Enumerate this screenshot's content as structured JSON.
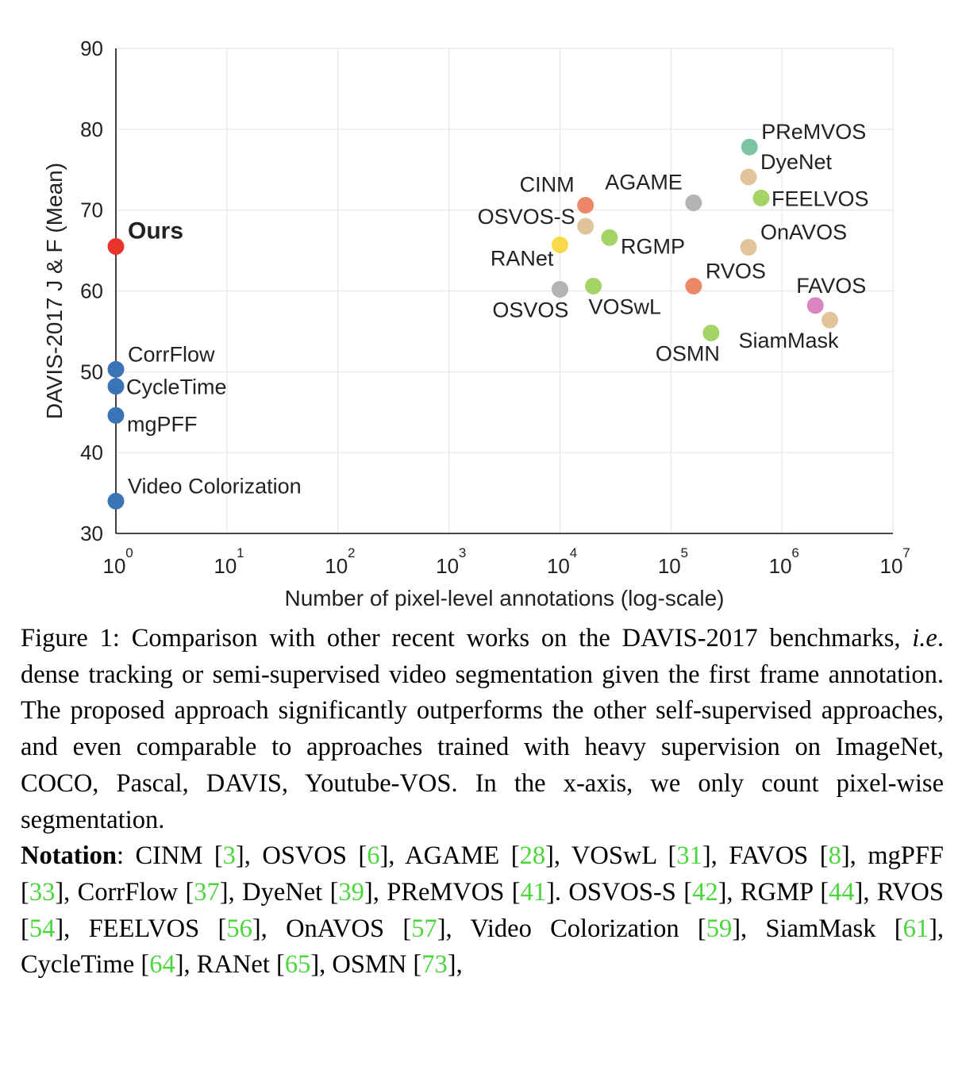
{
  "chart_data": {
    "type": "scatter",
    "xlabel": "Number of pixel-level annotations (log-scale)",
    "ylabel": "DAVIS-2017 J & F (Mean)",
    "xscale": "log",
    "xlim": [
      1,
      10000000
    ],
    "ylim": [
      30,
      90
    ],
    "grid": true,
    "x_ticks": [
      {
        "base": "10",
        "exp": "0"
      },
      {
        "base": "10",
        "exp": "1"
      },
      {
        "base": "10",
        "exp": "2"
      },
      {
        "base": "10",
        "exp": "3"
      },
      {
        "base": "10",
        "exp": "4"
      },
      {
        "base": "10",
        "exp": "5"
      },
      {
        "base": "10",
        "exp": "6"
      },
      {
        "base": "10",
        "exp": "7"
      }
    ],
    "y_ticks": [
      30,
      40,
      50,
      60,
      70,
      80,
      90
    ],
    "points": [
      {
        "label": "Ours",
        "x": 1,
        "y": 65.5,
        "color": "#e8332a",
        "bold": true,
        "label_pos": "right-up"
      },
      {
        "label": "CorrFlow",
        "x": 1,
        "y": 50.3,
        "color": "#3b74b5",
        "label_pos": "right-up"
      },
      {
        "label": "CycleTime",
        "x": 1,
        "y": 48.2,
        "color": "#3b74b5",
        "label_pos": "right"
      },
      {
        "label": "mgPFF",
        "x": 1,
        "y": 44.6,
        "color": "#3b74b5",
        "label_pos": "right-down"
      },
      {
        "label": "Video Colorization",
        "x": 1,
        "y": 34.0,
        "color": "#3b74b5",
        "label_pos": "right-up"
      },
      {
        "label": "CINM",
        "x": 17000,
        "y": 70.6,
        "color": "#ec8868",
        "label_pos": "above-left"
      },
      {
        "label": "OSVOS-S",
        "x": 17000,
        "y": 68.0,
        "color": "#e2c49a",
        "label_pos": "left"
      },
      {
        "label": "RANet",
        "x": 10000,
        "y": 65.7,
        "color": "#f7d94a",
        "label_pos": "left-down"
      },
      {
        "label": "OSVOS",
        "x": 10000,
        "y": 60.2,
        "color": "#b3b3b3",
        "label_pos": "below-left"
      },
      {
        "label": "RGMP",
        "x": 28000,
        "y": 66.6,
        "color": "#a5d466",
        "label_pos": "right-down"
      },
      {
        "label": "VOSwL",
        "x": 20000,
        "y": 60.6,
        "color": "#a5d466",
        "label_pos": "below-right"
      },
      {
        "label": "AGAME",
        "x": 160000,
        "y": 70.9,
        "color": "#b3b3b3",
        "label_pos": "above-left"
      },
      {
        "label": "RVOS",
        "x": 160000,
        "y": 60.6,
        "color": "#ec8868",
        "label_pos": "right-up"
      },
      {
        "label": "OSMN",
        "x": 230000,
        "y": 54.8,
        "color": "#a5d466",
        "label_pos": "below-left"
      },
      {
        "label": "PReMVOS",
        "x": 510000,
        "y": 77.8,
        "color": "#7cc3a4",
        "label_pos": "right-up"
      },
      {
        "label": "DyeNet",
        "x": 500000,
        "y": 74.1,
        "color": "#e2c49a",
        "label_pos": "right-up"
      },
      {
        "label": "FEELVOS",
        "x": 650000,
        "y": 71.5,
        "color": "#a5d466",
        "label_pos": "right"
      },
      {
        "label": "OnAVOS",
        "x": 500000,
        "y": 65.4,
        "color": "#e2c49a",
        "label_pos": "right-up"
      },
      {
        "label": "FAVOS",
        "x": 2000000,
        "y": 58.2,
        "color": "#d885c2",
        "label_pos": "above"
      },
      {
        "label": "SiamMask",
        "x": 2700000,
        "y": 56.4,
        "color": "#e2c49a",
        "label_pos": "below-left"
      }
    ]
  },
  "caption": {
    "figure_label": "Figure 1:",
    "text_1": " Comparison with other recent works on the DAVIS-2017 benchmarks, ",
    "ie": "i.e",
    "text_2": ". dense tracking or semi-supervised video segmentation given the first frame annotation.  The proposed approach significantly outperforms the other self-supervised approaches, and even comparable to approaches trained with heavy supervision on ImageNet, COCO, Pascal, DAVIS, Youtube-VOS. In the x-axis, we only count pixel-wise segmentation.",
    "notation_title": "Notation",
    "notation_colon": ":",
    "notation_items": [
      {
        "name": "CINM",
        "ref": "3",
        "sep": ","
      },
      {
        "name": "OSVOS",
        "ref": "6",
        "sep": ","
      },
      {
        "name": "AGAME",
        "ref": "28",
        "sep": ","
      },
      {
        "name": "VOSwL",
        "ref": "31",
        "sep": ","
      },
      {
        "name": "FAVOS",
        "ref": "8",
        "sep": ","
      },
      {
        "name": "mgPFF",
        "ref": "33",
        "sep": ","
      },
      {
        "name": "CorrFlow",
        "ref": "37",
        "sep": ","
      },
      {
        "name": "DyeNet",
        "ref": "39",
        "sep": ","
      },
      {
        "name": "PReMVOS",
        "ref": "41",
        "sep": "."
      },
      {
        "name": "OSVOS-S",
        "ref": "42",
        "sep": ","
      },
      {
        "name": "RGMP",
        "ref": "44",
        "sep": ","
      },
      {
        "name": "RVOS",
        "ref": "54",
        "sep": ","
      },
      {
        "name": "FEELVOS",
        "ref": "56",
        "sep": ","
      },
      {
        "name": "OnAVOS",
        "ref": "57",
        "sep": ","
      },
      {
        "name": "Video Colorization",
        "ref": "59",
        "sep": ","
      },
      {
        "name": "SiamMask",
        "ref": "61",
        "sep": ","
      },
      {
        "name": "CycleTime",
        "ref": "64",
        "sep": ","
      },
      {
        "name": "RANet",
        "ref": "65",
        "sep": ","
      },
      {
        "name": "OSMN",
        "ref": "73",
        "sep": ","
      }
    ]
  }
}
